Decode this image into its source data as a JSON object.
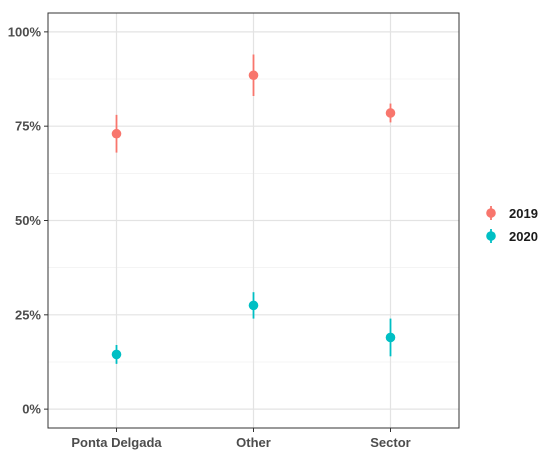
{
  "chart_data": {
    "type": "scatter",
    "subtype": "point-range",
    "categories": [
      "Ponta Delgada",
      "Other",
      "Sector"
    ],
    "y_ticks": [
      0,
      25,
      50,
      75,
      100
    ],
    "y_tick_labels": [
      "0%",
      "25%",
      "50%",
      "75%",
      "100%"
    ],
    "ylim": [
      -5,
      105
    ],
    "grid": true,
    "legend_position": "right",
    "series": [
      {
        "name": "2019",
        "color": "#F8766D",
        "values": [
          73,
          88.5,
          78.5
        ],
        "lower": [
          68,
          83,
          76
        ],
        "upper": [
          78,
          94,
          81
        ]
      },
      {
        "name": "2020",
        "color": "#00BFC4",
        "values": [
          14.5,
          27.5,
          19
        ],
        "lower": [
          12,
          24,
          14
        ],
        "upper": [
          17,
          31,
          24
        ]
      }
    ]
  }
}
